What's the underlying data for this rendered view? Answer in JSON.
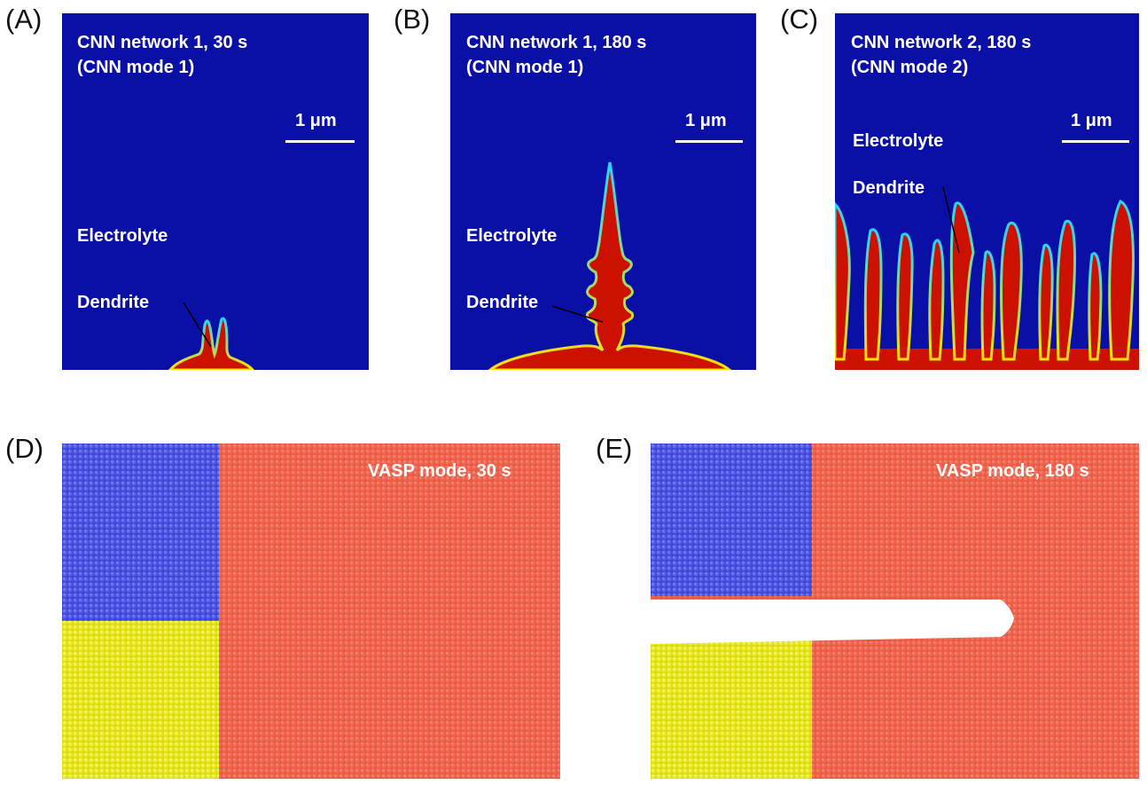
{
  "panels": {
    "A": {
      "letter": "(A)",
      "title_line1": "CNN network 1, 30 s",
      "title_line2": "(CNN mode 1)",
      "scale": "1 μm",
      "electrolyte": "Electrolyte",
      "dendrite": "Dendrite"
    },
    "B": {
      "letter": "(B)",
      "title_line1": "CNN network 1, 180 s",
      "title_line2": "(CNN mode 1)",
      "scale": "1 μm",
      "electrolyte": "Electrolyte",
      "dendrite": "Dendrite"
    },
    "C": {
      "letter": "(C)",
      "title_line1": "CNN network 2, 180 s",
      "title_line2": "(CNN mode 2)",
      "scale": "1 μm",
      "electrolyte": "Electrolyte",
      "dendrite": "Dendrite"
    },
    "D": {
      "letter": "(D)",
      "title": "VASP mode, 30 s"
    },
    "E": {
      "letter": "(E)",
      "title": "VASP mode, 180 s"
    }
  },
  "colors": {
    "electrolyte_blue": "#0a0fa6",
    "dendrite_red": "#cc1100",
    "md_red": "#ec5a43",
    "md_blue": "#4b53e6",
    "md_yellow": "#eded1e"
  }
}
